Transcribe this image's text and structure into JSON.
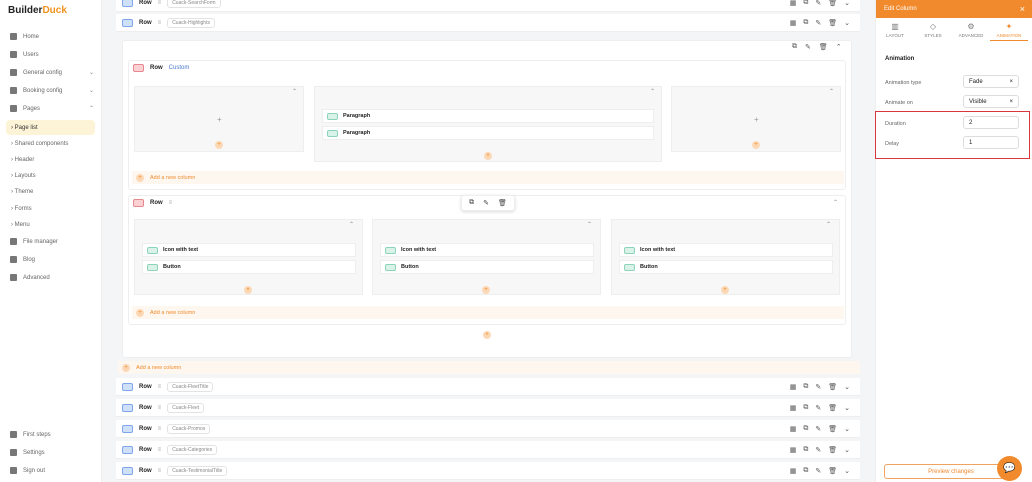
{
  "brand": {
    "name_a": "Builder",
    "name_b": "Duck"
  },
  "sidebar": {
    "items": [
      {
        "label": "Home",
        "icon": "home-icon"
      },
      {
        "label": "Users",
        "icon": "users-icon"
      },
      {
        "label": "General config",
        "icon": "gear-icon",
        "chevron": "⌄"
      },
      {
        "label": "Booking config",
        "icon": "calendar-icon",
        "chevron": "⌄"
      },
      {
        "label": "Pages",
        "icon": "pages-icon",
        "chevron": "⌃"
      }
    ],
    "sub_items": [
      "Page list",
      "Shared components",
      "Header",
      "Layouts",
      "Theme",
      "Forms",
      "Menu"
    ],
    "more_items": [
      {
        "label": "File manager"
      },
      {
        "label": "Blog"
      },
      {
        "label": "Advanced"
      }
    ],
    "bottom_items": [
      {
        "label": "First steps"
      },
      {
        "label": "Settings"
      },
      {
        "label": "Sign out"
      }
    ]
  },
  "main": {
    "top_rows": [
      {
        "label": "Row",
        "chip": "Cuack-SearchForm"
      },
      {
        "label": "Row",
        "chip": "Cuack-Highlights"
      }
    ],
    "custom_row": {
      "label": "Row",
      "name": "Custom",
      "col2_elements": [
        "Paragraph",
        "Paragraph"
      ],
      "add_column": "Add a new column"
    },
    "second_row": {
      "label": "Row",
      "columns": [
        [
          "Icon with text",
          "Button"
        ],
        [
          "Icon with text",
          "Button"
        ],
        [
          "Icon with text",
          "Button"
        ]
      ],
      "add_column": "Add a new column"
    },
    "add_column": "Add a new column",
    "bottom_rows": [
      {
        "label": "Row",
        "chip": "Cuack-FleetTitle"
      },
      {
        "label": "Row",
        "chip": "Cuack-Fleet"
      },
      {
        "label": "Row",
        "chip": "Cuack-Promos"
      },
      {
        "label": "Row",
        "chip": "Cuack-Categories"
      },
      {
        "label": "Row",
        "chip": "Cuack-TestimonialTitle"
      }
    ]
  },
  "panel": {
    "title": "Edit Column",
    "tabs": [
      "LAYOUT",
      "STYLES",
      "ADVANCED",
      "ANIMATION"
    ],
    "active_tab": "ANIMATION",
    "section": "Animation",
    "fields": [
      {
        "label": "Animation type",
        "value": "Fade",
        "clear": "×"
      },
      {
        "label": "Animate on",
        "value": "Visible",
        "clear": "×"
      },
      {
        "label": "Duration",
        "value": "2"
      },
      {
        "label": "Delay",
        "value": "1"
      }
    ],
    "preview": "Preview changes"
  },
  "colors": {
    "accent": "#f08a2c",
    "highlight": "#d9363e"
  }
}
